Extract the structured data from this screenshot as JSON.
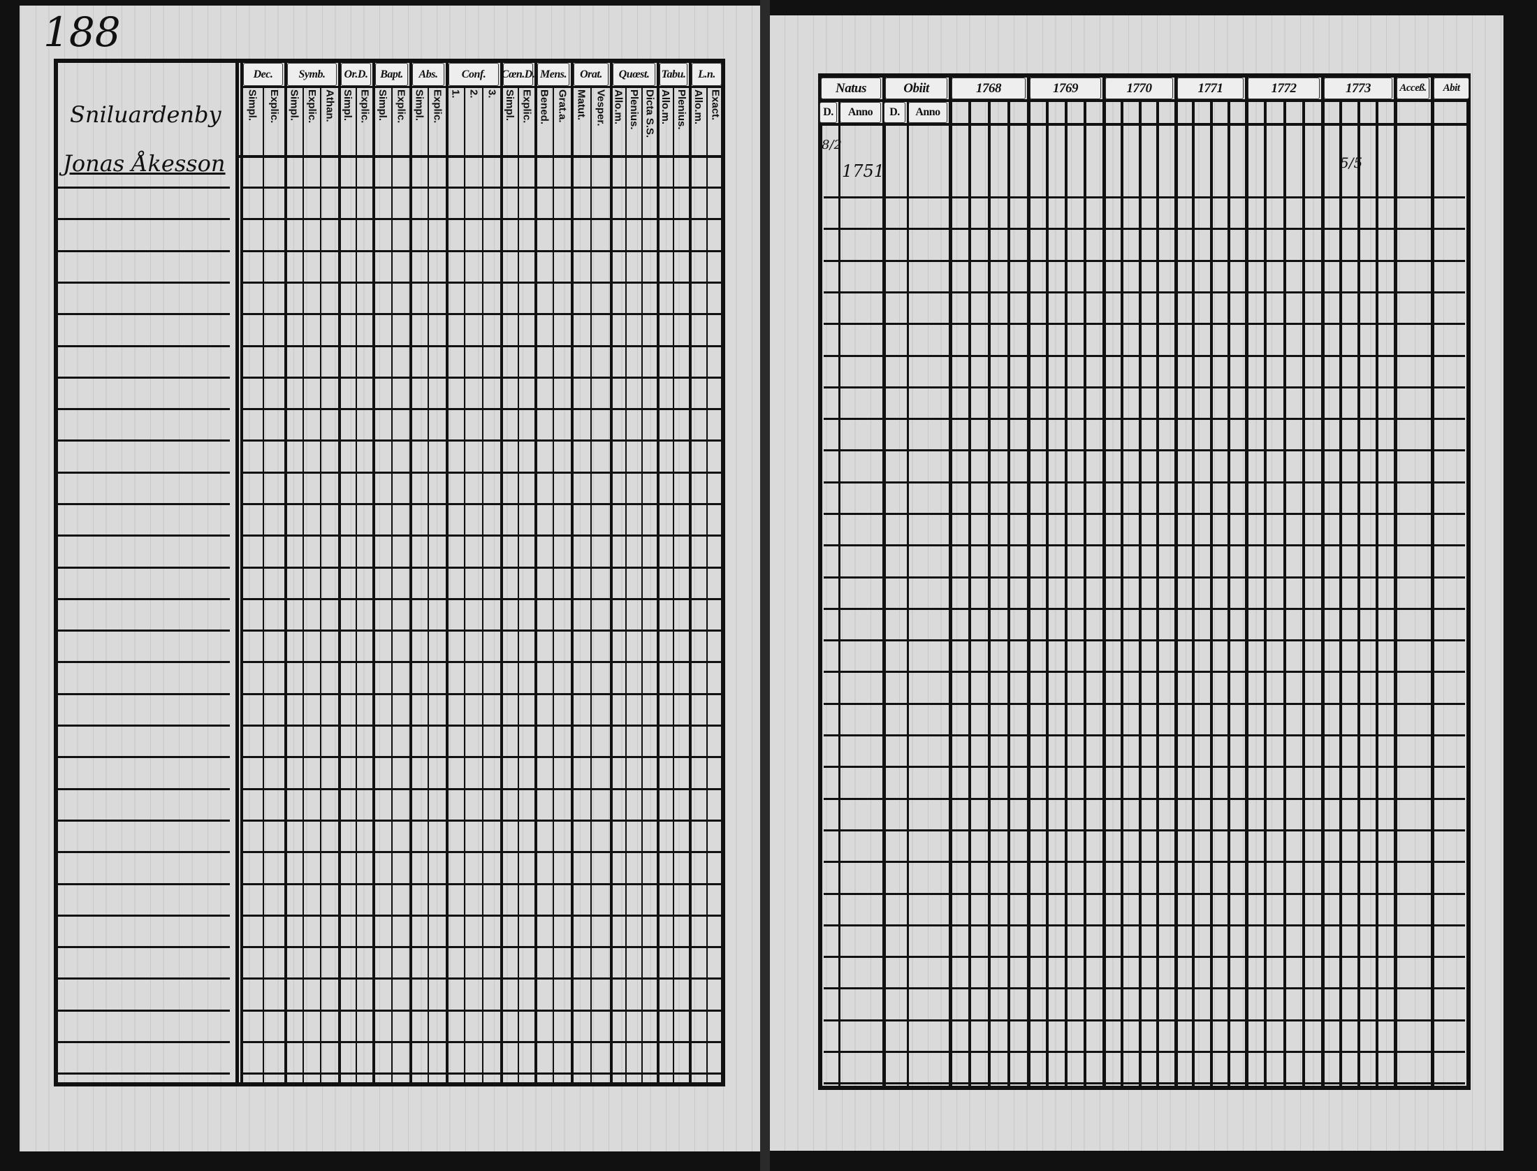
{
  "page_number": "188",
  "left_table": {
    "place": "Sniluardenby",
    "person": "Jonas Åkesson",
    "groups": [
      {
        "label": "Dec.",
        "subs": [
          "Simpl.",
          "Explic."
        ]
      },
      {
        "label": "Symb.",
        "subs": [
          "Simpl.",
          "Explic.",
          "Athan."
        ]
      },
      {
        "label": "Or.D.",
        "subs": [
          "Simpl.",
          "Explic."
        ]
      },
      {
        "label": "Bapt.",
        "subs": [
          "Simpl.",
          "Explic."
        ]
      },
      {
        "label": "Abs.",
        "subs": [
          "Simpl.",
          "Explic."
        ]
      },
      {
        "label": "Conf.",
        "subs": [
          "1.",
          "2.",
          "3."
        ]
      },
      {
        "label": "Cœn.D.",
        "subs": [
          "Simpl.",
          "Explic."
        ]
      },
      {
        "label": "Mens.",
        "subs": [
          "Bened.",
          "Grat.a."
        ]
      },
      {
        "label": "Orat.",
        "subs": [
          "Matut.",
          "Vesper."
        ]
      },
      {
        "label": "Quœst.",
        "subs": [
          "Allo.m.",
          "Plenius.",
          "Dicta S.S."
        ]
      },
      {
        "label": "Tabu.",
        "subs": [
          "Allo.m.",
          "Plenius."
        ]
      },
      {
        "label": "L.n.",
        "subs": [
          "Allo.m.",
          "Exact."
        ]
      }
    ]
  },
  "right_table": {
    "natus": {
      "label": "Natus",
      "d": "D.",
      "anno": "Anno"
    },
    "obiit": {
      "label": "Obiit",
      "d": "D.",
      "anno": "Anno"
    },
    "years": [
      "1768",
      "1769",
      "1770",
      "1771",
      "1772",
      "1773"
    ],
    "accessit": "Acceß.",
    "abit": "Abit",
    "entry": {
      "natus_d": "8/2",
      "natus_anno": "1751",
      "year_1773_mark": "5/5"
    }
  }
}
